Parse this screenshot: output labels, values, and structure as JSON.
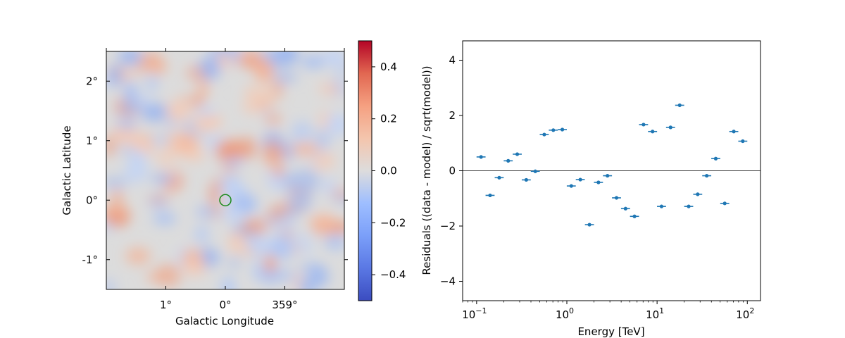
{
  "chart_data": [
    {
      "type": "heatmap",
      "xlabel": "Galactic Longitude",
      "ylabel": "Galactic Latitude",
      "x_ticks": [
        "1°",
        "0°",
        "359°"
      ],
      "x_tick_values": [
        1,
        0,
        -1
      ],
      "y_ticks": [
        "2°",
        "1°",
        "0°",
        "-1°"
      ],
      "y_tick_values": [
        2,
        1,
        0,
        -1
      ],
      "xlim": [
        2.0,
        -2.0
      ],
      "ylim": [
        -1.5,
        2.5
      ],
      "colormap": "coolwarm",
      "colorbar": {
        "range": [
          -0.5,
          0.5
        ],
        "ticks": [
          0.4,
          0.2,
          0.0,
          -0.2,
          -0.4
        ],
        "tick_labels": [
          "0.4",
          "0.2",
          "0.0",
          "−0.2",
          "−0.4"
        ]
      },
      "marker": {
        "shape": "circle",
        "color": "#1a8a1a",
        "l": 0,
        "b": 0
      }
    },
    {
      "type": "scatter",
      "xlabel": "Energy [TeV]",
      "ylabel": "Residuals ((data - model) / sqrt(model))",
      "xscale": "log",
      "xlim": [
        0.07,
        140
      ],
      "ylim": [
        -4.7,
        4.7
      ],
      "x_ticks": [
        0.1,
        1,
        10,
        100
      ],
      "x_tick_bases": [
        "10",
        "10",
        "10",
        "10"
      ],
      "x_tick_exps": [
        "−1",
        "0",
        "1",
        "2"
      ],
      "y_ticks": [
        4,
        2,
        0,
        -2,
        -4
      ],
      "y_tick_labels": [
        "4",
        "2",
        "0",
        "−2",
        "−4"
      ],
      "zero_line": true,
      "color": "#1f77b4",
      "points": [
        {
          "x": 0.112,
          "y": 0.5
        },
        {
          "x": 0.141,
          "y": -0.89
        },
        {
          "x": 0.178,
          "y": -0.25
        },
        {
          "x": 0.224,
          "y": 0.36
        },
        {
          "x": 0.282,
          "y": 0.6
        },
        {
          "x": 0.355,
          "y": -0.33
        },
        {
          "x": 0.447,
          "y": -0.02
        },
        {
          "x": 0.562,
          "y": 1.31
        },
        {
          "x": 0.708,
          "y": 1.47
        },
        {
          "x": 0.891,
          "y": 1.49
        },
        {
          "x": 1.12,
          "y": -0.55
        },
        {
          "x": 1.41,
          "y": -0.32
        },
        {
          "x": 1.78,
          "y": -1.95
        },
        {
          "x": 2.24,
          "y": -0.42
        },
        {
          "x": 2.82,
          "y": -0.18
        },
        {
          "x": 3.55,
          "y": -0.98
        },
        {
          "x": 4.47,
          "y": -1.37
        },
        {
          "x": 5.62,
          "y": -1.65
        },
        {
          "x": 7.08,
          "y": 1.67
        },
        {
          "x": 8.91,
          "y": 1.42
        },
        {
          "x": 11.2,
          "y": -1.29
        },
        {
          "x": 14.1,
          "y": 1.57
        },
        {
          "x": 17.8,
          "y": 2.37
        },
        {
          "x": 22.4,
          "y": -1.29
        },
        {
          "x": 28.2,
          "y": -0.85
        },
        {
          "x": 35.5,
          "y": -0.18
        },
        {
          "x": 44.7,
          "y": 0.44
        },
        {
          "x": 56.2,
          "y": -1.18
        },
        {
          "x": 70.8,
          "y": 1.42
        },
        {
          "x": 89.1,
          "y": 1.07
        }
      ]
    }
  ]
}
